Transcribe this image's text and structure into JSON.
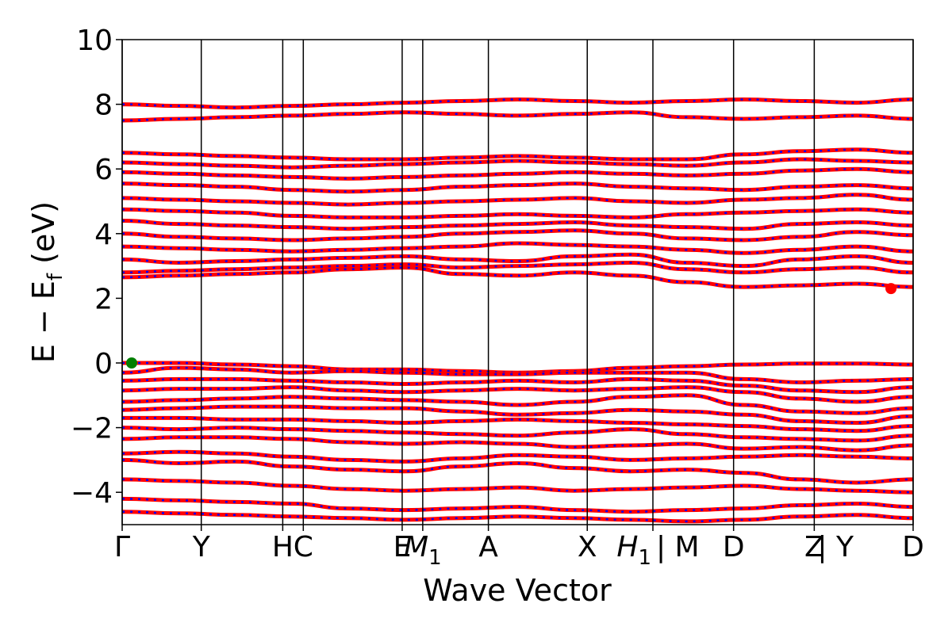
{
  "chart_data": {
    "type": "line",
    "title": "",
    "xlabel": "Wave Vector",
    "ylabel": "E − E",
    "ylabel_subscript": "f",
    "ylabel_unit": "(eV)",
    "ylim": [
      -5,
      10
    ],
    "yticks": [
      -4,
      -2,
      0,
      2,
      4,
      6,
      8,
      10
    ],
    "ytick_labels": [
      "−4",
      "−2",
      "0",
      "2",
      "4",
      "6",
      "8",
      "10"
    ],
    "xlim": [
      0,
      10
    ],
    "kpoints": [
      {
        "label": "Γ",
        "x": 0.0
      },
      {
        "label": "Y",
        "x": 1.0
      },
      {
        "label": "H",
        "x": 2.03
      },
      {
        "label": "C",
        "x": 2.29
      },
      {
        "label": "E",
        "x": 3.54
      },
      {
        "label": "M",
        "sub": "1",
        "x": 3.8
      },
      {
        "label": "A",
        "x": 4.63
      },
      {
        "label": "X",
        "x": 5.88
      },
      {
        "label": "H",
        "sub": "1",
        "x": 6.71
      },
      {
        "label": "| M",
        "x": 6.71
      },
      {
        "label": "D",
        "x": 7.73
      },
      {
        "label": "Z",
        "x": 8.75
      },
      {
        "label": "| Y",
        "x": 8.75
      },
      {
        "label": "D",
        "x": 10.0
      }
    ],
    "band_color": "#ff0000",
    "overlay_color": "#0000ff",
    "valence_bands": [
      [
        0.0,
        0.0,
        -0.05,
        -0.1,
        -0.2,
        -0.2,
        -0.25,
        -0.3,
        -0.25,
        -0.15,
        -0.1,
        -0.05,
        -0.02,
        -0.02,
        -0.05
      ],
      [
        -0.3,
        -0.15,
        -0.2,
        -0.3,
        -0.25,
        -0.3,
        -0.35,
        -0.35,
        -0.3,
        -0.3,
        -0.3,
        -0.5,
        -0.6,
        -0.55,
        -0.5
      ],
      [
        -0.55,
        -0.5,
        -0.5,
        -0.55,
        -0.6,
        -0.65,
        -0.6,
        -0.55,
        -0.6,
        -0.5,
        -0.55,
        -0.7,
        -0.85,
        -0.9,
        -0.75
      ],
      [
        -0.85,
        -0.8,
        -0.8,
        -0.75,
        -0.85,
        -0.9,
        -0.85,
        -0.8,
        -0.85,
        -0.8,
        -0.75,
        -0.9,
        -1.1,
        -1.2,
        -1.05
      ],
      [
        -1.2,
        -1.15,
        -1.1,
        -1.05,
        -1.1,
        -1.15,
        -1.2,
        -1.3,
        -1.2,
        -1.05,
        -1.0,
        -1.3,
        -1.5,
        -1.55,
        -1.4
      ],
      [
        -1.45,
        -1.4,
        -1.35,
        -1.35,
        -1.4,
        -1.4,
        -1.5,
        -1.6,
        -1.55,
        -1.45,
        -1.5,
        -1.6,
        -1.8,
        -1.85,
        -1.65
      ],
      [
        -1.7,
        -1.7,
        -1.75,
        -1.75,
        -1.8,
        -1.85,
        -1.8,
        -1.75,
        -1.8,
        -1.85,
        -1.9,
        -1.95,
        -2.05,
        -2.1,
        -1.95
      ],
      [
        -2.0,
        -2.05,
        -2.0,
        -2.05,
        -2.1,
        -2.15,
        -2.2,
        -2.25,
        -2.15,
        -2.05,
        -2.2,
        -2.3,
        -2.35,
        -2.4,
        -2.25
      ],
      [
        -2.35,
        -2.3,
        -2.3,
        -2.35,
        -2.45,
        -2.5,
        -2.45,
        -2.5,
        -2.6,
        -2.55,
        -2.5,
        -2.65,
        -2.6,
        -2.7,
        -2.55
      ],
      [
        -2.8,
        -2.75,
        -2.8,
        -2.9,
        -3.0,
        -3.05,
        -2.95,
        -2.85,
        -2.9,
        -3.0,
        -2.95,
        -2.9,
        -2.85,
        -2.9,
        -2.95
      ],
      [
        -3.0,
        -3.1,
        -3.05,
        -3.2,
        -3.3,
        -3.35,
        -3.2,
        -3.1,
        -3.25,
        -3.35,
        -3.3,
        -3.4,
        -3.6,
        -3.7,
        -3.6
      ],
      [
        -3.6,
        -3.65,
        -3.7,
        -3.8,
        -3.9,
        -3.95,
        -3.9,
        -3.85,
        -3.95,
        -3.9,
        -3.85,
        -3.8,
        -3.9,
        -3.95,
        -4.0
      ],
      [
        -4.2,
        -4.25,
        -4.3,
        -4.35,
        -4.5,
        -4.55,
        -4.5,
        -4.45,
        -4.55,
        -4.6,
        -4.55,
        -4.5,
        -4.4,
        -4.35,
        -4.45
      ],
      [
        -4.6,
        -4.65,
        -4.7,
        -4.75,
        -4.8,
        -4.85,
        -4.8,
        -4.75,
        -4.8,
        -4.85,
        -4.9,
        -4.85,
        -4.75,
        -4.7,
        -4.8
      ]
    ],
    "conduction_bands": [
      [
        2.65,
        2.7,
        2.75,
        2.8,
        2.9,
        2.95,
        2.75,
        2.7,
        2.8,
        2.7,
        2.5,
        2.35,
        2.4,
        2.45,
        2.35
      ],
      [
        2.8,
        2.85,
        2.9,
        2.95,
        3.0,
        3.05,
        2.95,
        3.0,
        3.05,
        3.1,
        2.9,
        2.8,
        2.9,
        2.95,
        2.8
      ],
      [
        3.2,
        3.1,
        3.15,
        3.2,
        3.25,
        3.3,
        3.2,
        3.15,
        3.3,
        3.35,
        3.1,
        3.0,
        3.2,
        3.3,
        3.1
      ],
      [
        3.6,
        3.55,
        3.5,
        3.45,
        3.5,
        3.55,
        3.6,
        3.7,
        3.65,
        3.6,
        3.5,
        3.4,
        3.5,
        3.6,
        3.45
      ],
      [
        4.0,
        3.9,
        3.85,
        3.8,
        3.85,
        3.9,
        4.0,
        4.05,
        4.1,
        4.0,
        3.85,
        3.8,
        3.9,
        4.05,
        3.95
      ],
      [
        4.4,
        4.3,
        4.25,
        4.2,
        4.15,
        4.2,
        4.25,
        4.3,
        4.35,
        4.25,
        4.2,
        4.15,
        4.3,
        4.35,
        4.25
      ],
      [
        4.75,
        4.7,
        4.65,
        4.55,
        4.5,
        4.5,
        4.55,
        4.6,
        4.55,
        4.5,
        4.6,
        4.65,
        4.7,
        4.75,
        4.65
      ],
      [
        5.1,
        5.05,
        5.0,
        4.95,
        4.9,
        4.95,
        5.0,
        5.05,
        5.1,
        5.0,
        4.95,
        5.05,
        5.1,
        5.2,
        5.05
      ],
      [
        5.55,
        5.5,
        5.45,
        5.35,
        5.3,
        5.35,
        5.45,
        5.5,
        5.55,
        5.45,
        5.4,
        5.35,
        5.45,
        5.5,
        5.4
      ],
      [
        5.9,
        5.85,
        5.8,
        5.75,
        5.7,
        5.75,
        5.8,
        5.85,
        5.9,
        5.85,
        5.8,
        5.85,
        5.95,
        6.0,
        5.9
      ],
      [
        6.2,
        6.15,
        6.1,
        6.05,
        6.1,
        6.15,
        6.2,
        6.25,
        6.2,
        6.15,
        6.1,
        6.2,
        6.3,
        6.25,
        6.2
      ],
      [
        6.5,
        6.45,
        6.4,
        6.35,
        6.3,
        6.3,
        6.35,
        6.4,
        6.35,
        6.3,
        6.3,
        6.45,
        6.55,
        6.6,
        6.5
      ],
      [
        7.5,
        7.55,
        7.6,
        7.65,
        7.7,
        7.75,
        7.7,
        7.65,
        7.7,
        7.75,
        7.6,
        7.55,
        7.6,
        7.65,
        7.55
      ],
      [
        8.0,
        7.95,
        7.9,
        7.95,
        8.0,
        8.05,
        8.1,
        8.15,
        8.1,
        8.05,
        8.1,
        8.15,
        8.1,
        8.05,
        8.15
      ]
    ],
    "markers": [
      {
        "x": 0.12,
        "y": 0.0,
        "color": "#007f00"
      },
      {
        "x": 9.72,
        "y": 2.3,
        "color": "#ff0000"
      }
    ]
  }
}
